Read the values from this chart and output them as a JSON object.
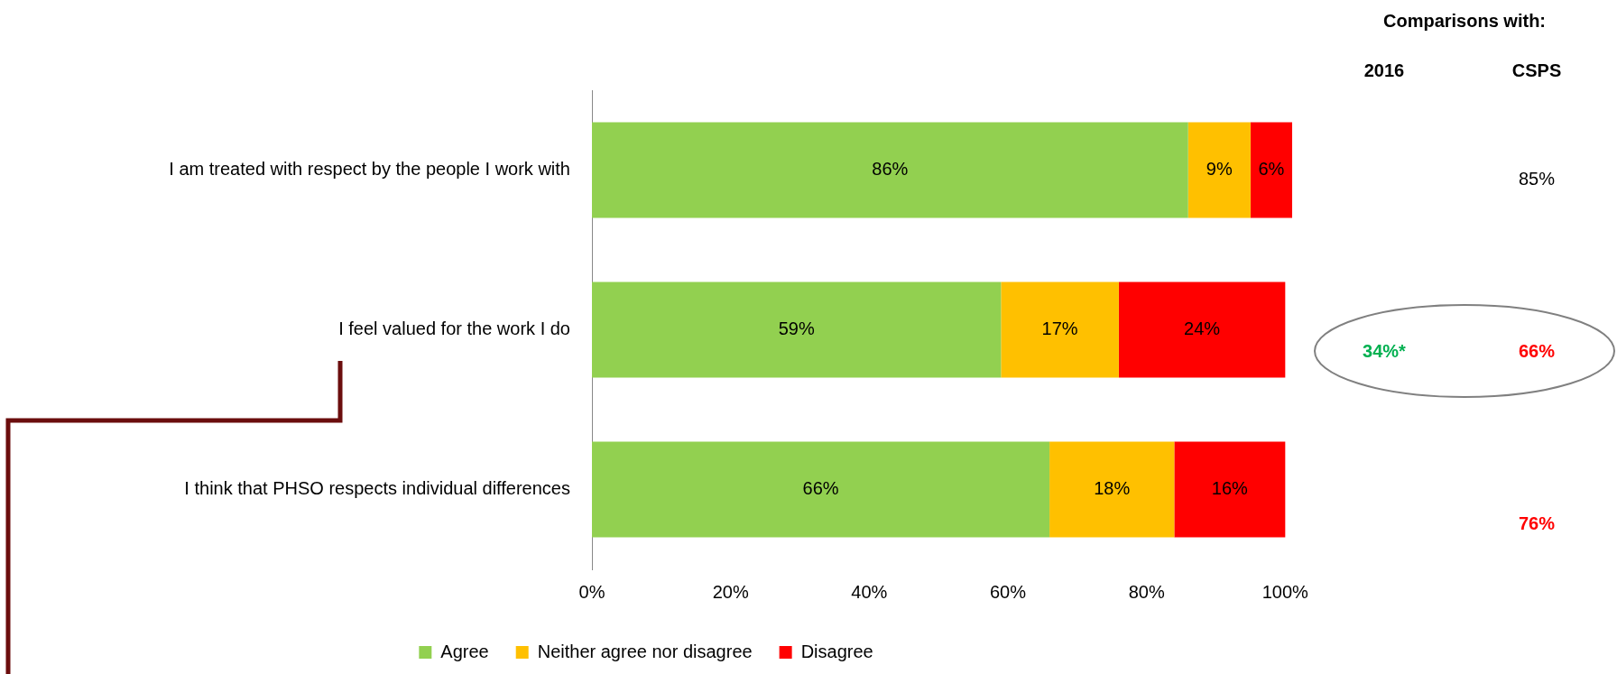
{
  "chart_data": {
    "type": "bar",
    "orientation": "horizontal",
    "stacked": true,
    "categories": [
      "I am treated with respect by the people I work with",
      "I feel valued for the work I do",
      "I think that PHSO respects individual differences"
    ],
    "series": [
      {
        "name": "Agree",
        "color": "#92d050",
        "values": [
          86,
          59,
          66
        ],
        "value_labels": [
          "86%",
          "59%",
          "66%"
        ]
      },
      {
        "name": "Neither agree nor disagree",
        "color": "#ffc000",
        "values": [
          9,
          17,
          18
        ],
        "value_labels": [
          "9%",
          "17%",
          "18%"
        ]
      },
      {
        "name": "Disagree",
        "color": "#ff0000",
        "values": [
          6,
          24,
          16
        ],
        "value_labels": [
          "6%",
          "24%",
          "16%"
        ]
      }
    ],
    "xlim": [
      0,
      101
    ],
    "xticks": [
      {
        "value": 0,
        "label": "0%"
      },
      {
        "value": 20,
        "label": "20%"
      },
      {
        "value": 40,
        "label": "40%"
      },
      {
        "value": 60,
        "label": "60%"
      },
      {
        "value": 80,
        "label": "80%"
      },
      {
        "value": 100,
        "label": "100%"
      }
    ],
    "grid": false,
    "legend": "bottom",
    "annotations": [
      "Comparisons with:",
      "2016",
      "CSPS",
      "85%",
      "34%*",
      "66%",
      "76%"
    ]
  }
}
